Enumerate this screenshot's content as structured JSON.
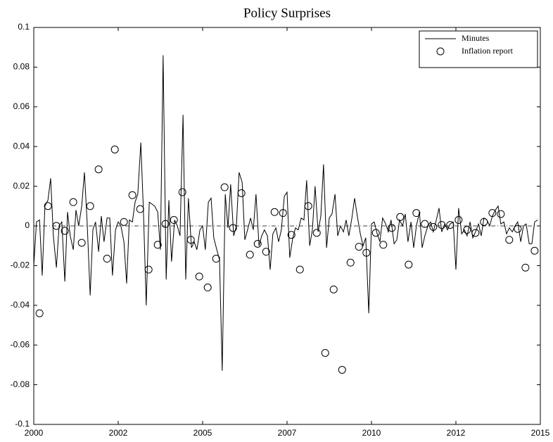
{
  "chart_data": {
    "type": "line",
    "title": "Policy Surprises",
    "xlim": [
      2000,
      2015
    ],
    "ylim": [
      -0.1,
      0.1
    ],
    "xticks": [
      2000,
      {
        "value": 2002.5,
        "label": "2002"
      },
      2005,
      {
        "value": 2007.5,
        "label": "2007"
      },
      2010,
      {
        "value": 2012.5,
        "label": "2012"
      },
      2015
    ],
    "yticks": [
      -0.1,
      -0.08,
      -0.06,
      -0.04,
      -0.02,
      0,
      0.02,
      0.04,
      0.06,
      0.08,
      0.1
    ],
    "legend": "upper right",
    "series": [
      {
        "name": "Minutes",
        "type": "line",
        "color": "#000000",
        "x": [
          2000,
          2000.08,
          2000.17,
          2000.25,
          2000.33,
          2000.42,
          2000.5,
          2000.58,
          2000.67,
          2000.75,
          2000.83,
          2000.92,
          2001,
          2001.08,
          2001.17,
          2001.25,
          2001.33,
          2001.42,
          2001.5,
          2001.58,
          2001.67,
          2001.75,
          2001.83,
          2001.92,
          2002,
          2002.08,
          2002.17,
          2002.25,
          2002.33,
          2002.42,
          2002.5,
          2002.58,
          2002.67,
          2002.75,
          2002.83,
          2002.92,
          2003,
          2003.08,
          2003.17,
          2003.25,
          2003.33,
          2003.42,
          2003.5,
          2003.58,
          2003.67,
          2003.75,
          2003.83,
          2003.92,
          2004,
          2004.08,
          2004.17,
          2004.25,
          2004.33,
          2004.42,
          2004.5,
          2004.58,
          2004.67,
          2004.75,
          2004.83,
          2004.92,
          2005,
          2005.08,
          2005.17,
          2005.25,
          2005.33,
          2005.42,
          2005.5,
          2005.58,
          2005.67,
          2005.75,
          2005.83,
          2005.92,
          2006,
          2006.08,
          2006.17,
          2006.25,
          2006.33,
          2006.42,
          2006.5,
          2006.58,
          2006.67,
          2006.75,
          2006.83,
          2006.92,
          2007,
          2007.08,
          2007.17,
          2007.25,
          2007.33,
          2007.42,
          2007.5,
          2007.58,
          2007.67,
          2007.75,
          2007.83,
          2007.92,
          2008,
          2008.08,
          2008.17,
          2008.25,
          2008.33,
          2008.42,
          2008.5,
          2008.58,
          2008.67,
          2008.75,
          2008.83,
          2008.92,
          2009,
          2009.08,
          2009.17,
          2009.25,
          2009.33,
          2009.42,
          2009.5,
          2009.58,
          2009.67,
          2009.75,
          2009.83,
          2009.92,
          2010,
          2010.08,
          2010.17,
          2010.25,
          2010.33,
          2010.42,
          2010.5,
          2010.58,
          2010.67,
          2010.75,
          2010.83,
          2010.92,
          2011,
          2011.08,
          2011.17,
          2011.25,
          2011.33,
          2011.42,
          2011.5,
          2011.58,
          2011.67,
          2011.75,
          2011.83,
          2011.92,
          2012,
          2012.08,
          2012.17,
          2012.25,
          2012.33,
          2012.42,
          2012.5,
          2012.58,
          2012.67,
          2012.75,
          2012.83,
          2012.92,
          2013,
          2013.08,
          2013.17,
          2013.25,
          2013.33,
          2013.42,
          2013.5,
          2013.58,
          2013.67,
          2013.75,
          2013.83,
          2013.92,
          2014,
          2014.08,
          2014.17,
          2014.25,
          2014.33,
          2014.42,
          2014.5,
          2014.58,
          2014.67,
          2014.75,
          2014.83,
          2014.92
        ],
        "values": [
          -0.02,
          0.002,
          0.003,
          -0.025,
          0.01,
          0.013,
          0.024,
          -0.005,
          -0.021,
          0.0,
          0.002,
          -0.028,
          0.007,
          -0.005,
          -0.012,
          0.008,
          0.0,
          0.01,
          0.027,
          0.002,
          -0.035,
          -0.002,
          0.002,
          -0.013,
          0.005,
          -0.008,
          0.004,
          0.004,
          -0.025,
          -0.002,
          0.002,
          0.0,
          -0.008,
          -0.029,
          0.003,
          0.002,
          0.012,
          0.016,
          0.042,
          0.006,
          -0.04,
          0.012,
          0.011,
          0.01,
          0.007,
          -0.012,
          0.086,
          -0.027,
          0.013,
          -0.018,
          0.003,
          0.0,
          -0.005,
          0.056,
          -0.027,
          0.014,
          -0.011,
          -0.008,
          -0.012,
          -0.002,
          0.0,
          -0.012,
          0.012,
          0.014,
          -0.006,
          -0.012,
          -0.017,
          -0.073,
          0.016,
          -0.001,
          0.021,
          -0.005,
          0.0,
          0.027,
          0.022,
          -0.007,
          -0.002,
          0.004,
          -0.002,
          0.016,
          -0.01,
          -0.005,
          -0.002,
          -0.005,
          -0.022,
          -0.004,
          -0.001,
          -0.008,
          -0.002,
          0.015,
          0.017,
          -0.016,
          -0.006,
          -0.001,
          -0.002,
          0.004,
          0.003,
          0.023,
          -0.01,
          -0.002,
          0.02,
          -0.003,
          0.005,
          0.031,
          -0.011,
          0.004,
          0.006,
          0.016,
          -0.005,
          0.0,
          -0.003,
          0.003,
          -0.005,
          0.004,
          0.014,
          0.005,
          -0.004,
          -0.01,
          -0.006,
          -0.044,
          0.001,
          0.002,
          -0.004,
          -0.008,
          0.004,
          0.001,
          -0.003,
          0.003,
          -0.009,
          -0.007,
          0.003,
          0.0,
          0.006,
          -0.008,
          0.002,
          -0.011,
          0.0,
          0.007,
          -0.011,
          -0.005,
          0.0,
          0.002,
          -0.003,
          0.003,
          0.009,
          -0.003,
          0.001,
          -0.002,
          0.001,
          0.002,
          -0.022,
          0.009,
          -0.004,
          -0.002,
          -0.005,
          0.002,
          -0.006,
          -0.003,
          0.001,
          -0.005,
          0.004,
          0.003,
          0.0,
          0.005,
          0.008,
          0.01,
          0.001,
          0.002,
          -0.004,
          -0.001,
          -0.003,
          0.0,
          0.002,
          -0.008,
          0.0,
          0.001,
          -0.009,
          -0.009,
          0.002,
          0.003
        ]
      },
      {
        "name": "Inflation report",
        "type": "scatter",
        "color": "#000000",
        "x": [
          2000.17,
          2000.42,
          2000.67,
          2000.92,
          2001.17,
          2001.42,
          2001.67,
          2001.92,
          2002.17,
          2002.4,
          2002.67,
          2002.92,
          2003.15,
          2003.4,
          2003.67,
          2003.9,
          2004.15,
          2004.4,
          2004.65,
          2004.9,
          2005.15,
          2005.4,
          2005.65,
          2005.9,
          2006.15,
          2006.4,
          2006.63,
          2006.88,
          2007.13,
          2007.38,
          2007.63,
          2007.88,
          2008.13,
          2008.38,
          2008.63,
          2008.88,
          2009.13,
          2009.38,
          2009.63,
          2009.85,
          2010.13,
          2010.35,
          2010.6,
          2010.85,
          2011.1,
          2011.33,
          2011.58,
          2011.83,
          2012.08,
          2012.33,
          2012.58,
          2012.83,
          2013.08,
          2013.33,
          2013.58,
          2013.83,
          2014.08,
          2014.33,
          2014.56,
          2014.83
        ],
        "values": [
          -0.044,
          0.01,
          0.0,
          -0.0025,
          0.012,
          -0.0085,
          0.01,
          0.0285,
          -0.0165,
          0.0385,
          0.002,
          0.0155,
          0.0085,
          -0.022,
          -0.0095,
          0.001,
          0.003,
          0.017,
          -0.007,
          -0.0255,
          -0.031,
          -0.0165,
          0.0195,
          -0.001,
          0.0165,
          -0.0145,
          -0.009,
          -0.013,
          0.007,
          0.0065,
          -0.0045,
          -0.022,
          0.01,
          -0.0035,
          -0.064,
          -0.032,
          -0.0725,
          -0.0185,
          -0.0105,
          -0.0135,
          -0.0035,
          -0.0095,
          -0.001,
          0.0045,
          -0.0195,
          0.0065,
          0.001,
          -0.0005,
          0.0005,
          0.0005,
          0.003,
          -0.002,
          -0.0035,
          0.002,
          0.0065,
          0.006,
          -0.007,
          -0.0015,
          -0.021,
          -0.0125
        ]
      }
    ]
  }
}
